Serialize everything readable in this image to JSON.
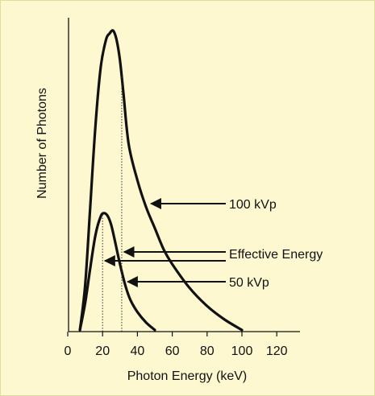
{
  "colors": {
    "background": "#fdf8cf",
    "outer_border": "#e3dd9b",
    "curve": "#111111",
    "dotted_line": "#333333"
  },
  "chart_data": {
    "type": "line",
    "title": "",
    "xlabel": "Photon Energy (keV)",
    "ylabel": "Number of Photons",
    "xlim": [
      0,
      125
    ],
    "ylim": [
      0,
      1.0
    ],
    "x_ticks": [
      0,
      20,
      40,
      60,
      80,
      100,
      120
    ],
    "x_tick_labels": [
      "0",
      "20",
      "40",
      "60",
      "80",
      "100",
      "120"
    ],
    "grid": false,
    "series": [
      {
        "name": "100 kVp",
        "x": [
          7,
          10,
          13,
          16,
          19,
          22,
          24,
          26,
          28,
          30,
          32,
          35,
          40,
          45,
          50,
          55,
          60,
          70,
          80,
          90,
          100
        ],
        "y": [
          0.0,
          0.15,
          0.42,
          0.69,
          0.88,
          0.97,
          0.99,
          1.0,
          0.97,
          0.9,
          0.79,
          0.62,
          0.5,
          0.41,
          0.34,
          0.27,
          0.22,
          0.14,
          0.08,
          0.035,
          0.0
        ]
      },
      {
        "name": "50 kVp",
        "x": [
          7,
          10,
          13,
          16,
          19,
          21,
          23,
          25,
          27,
          30,
          33,
          36,
          40,
          45,
          50
        ],
        "y": [
          0.0,
          0.09,
          0.21,
          0.32,
          0.38,
          0.39,
          0.38,
          0.35,
          0.3,
          0.22,
          0.15,
          0.1,
          0.06,
          0.025,
          0.0
        ]
      }
    ],
    "effective_energy": [
      {
        "series": "100 kVp",
        "x": 31
      },
      {
        "series": "50 kVp",
        "x": 20
      }
    ],
    "annotations": [
      {
        "text": "100 kVp",
        "target_series": "100 kVp",
        "target_x": 46,
        "target_y": 0.42
      },
      {
        "text": "Effective Energy",
        "target_series": "100 kVp",
        "target_x": 31,
        "target_y": 0.25
      },
      {
        "text": "Effective Energy",
        "target_series": "50 kVp",
        "target_x": 20,
        "target_y": 0.22
      },
      {
        "text": "50 kVp",
        "target_series": "50 kVp",
        "target_x": 33,
        "target_y": 0.15
      }
    ]
  }
}
